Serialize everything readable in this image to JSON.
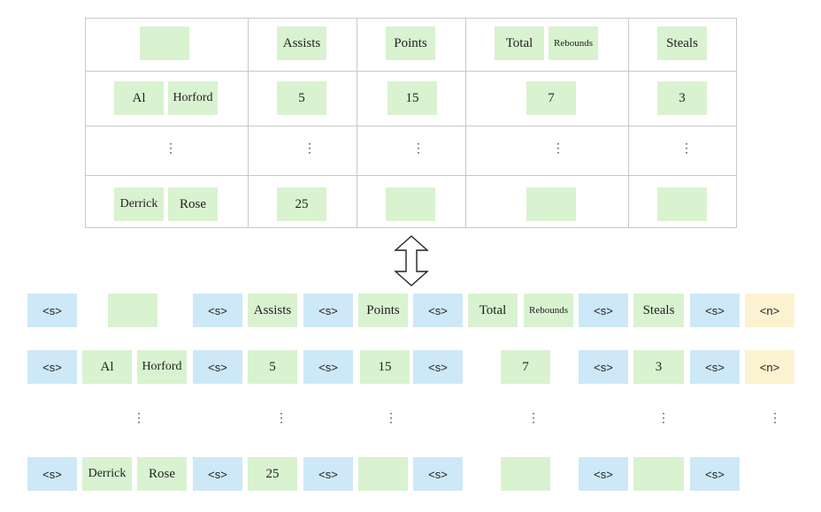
{
  "table": {
    "header": {
      "assists": "Assists",
      "points": "Points",
      "total": "Total",
      "rebounds": "Rebounds",
      "steals": "Steals"
    },
    "row1": {
      "first": "Al",
      "last": "Horford",
      "assists": "5",
      "points": "15",
      "rebounds": "7",
      "steals": "3"
    },
    "ellipsis": "⋮",
    "row3": {
      "first": "Derrick",
      "last": "Rose",
      "assists": "25"
    }
  },
  "sequence": {
    "sep": "<s>",
    "newline": "<n>",
    "ellipsis": "⋮"
  },
  "colors": {
    "value_cell": "#d9f2d0",
    "separator_token": "#cde8f7",
    "newline_token": "#fbf3d0",
    "grid": "#c8c8c8"
  },
  "icons": {
    "arrow": "double-vertical-arrow-icon"
  }
}
